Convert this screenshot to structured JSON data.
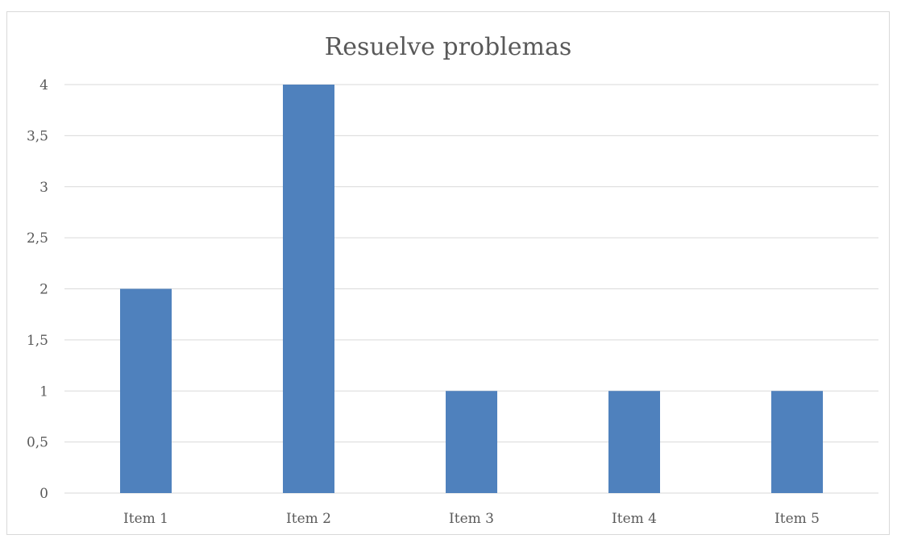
{
  "chart_data": {
    "type": "bar",
    "title": "Resuelve problemas",
    "categories": [
      "Item 1",
      "Item 2",
      "Item 3",
      "Item 4",
      "Item 5"
    ],
    "values": [
      2,
      4,
      1,
      1,
      1
    ],
    "xlabel": "",
    "ylabel": "",
    "ylim": [
      0,
      4
    ],
    "yticks": [
      "0",
      "0,5",
      "1",
      "1,5",
      "2",
      "2,5",
      "3",
      "3,5",
      "4"
    ],
    "grid": true,
    "legend": "none",
    "bar_color": "#4f81bd",
    "grid_color": "#d9d9d9"
  }
}
